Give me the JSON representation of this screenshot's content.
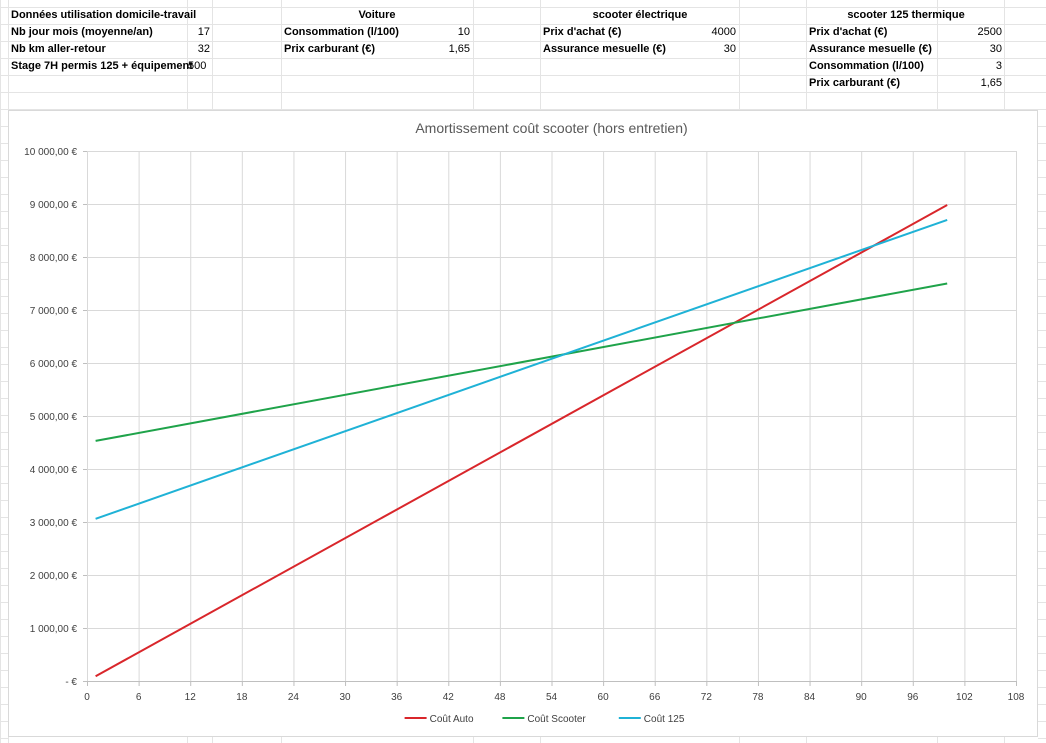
{
  "sheet": {
    "sections": [
      {
        "header": "Données utilisation domicile-travail",
        "rows": [
          {
            "label": "Nb jour mois (moyenne/an)",
            "value": "17"
          },
          {
            "label": "Nb km aller-retour",
            "value": "32"
          },
          {
            "label": "Stage 7H permis 125 + équipement",
            "value": "500"
          }
        ]
      },
      {
        "header": "Voiture",
        "rows": [
          {
            "label": "Consommation (l/100)",
            "value": "10"
          },
          {
            "label": "Prix carburant (€)",
            "value": "1,65"
          }
        ]
      },
      {
        "header": "scooter électrique",
        "rows": [
          {
            "label": "Prix d'achat (€)",
            "value": "4000"
          },
          {
            "label": "Assurance mesuelle (€)",
            "value": "30"
          }
        ]
      },
      {
        "header": "scooter 125 thermique",
        "rows": [
          {
            "label": "Prix d'achat (€)",
            "value": "2500"
          },
          {
            "label": "Assurance mesuelle (€)",
            "value": "30"
          },
          {
            "label": "Consommation (l/100)",
            "value": "3"
          },
          {
            "label": "Prix carburant (€)",
            "value": "1,65"
          }
        ]
      }
    ]
  },
  "colors": {
    "auto": "#d9262b",
    "scooter": "#1fa34a",
    "c125": "#1fb2d6",
    "gridline": "#d9d9d9",
    "axis_text": "#595959"
  },
  "chart_data": {
    "type": "line",
    "title": "Amortissement coût scooter (hors entretien)",
    "xlabel": "",
    "ylabel": "",
    "xlim": [
      0,
      108
    ],
    "ylim": [
      0,
      10000
    ],
    "x_ticks": [
      "0",
      "6",
      "12",
      "18",
      "24",
      "30",
      "36",
      "42",
      "48",
      "54",
      "60",
      "66",
      "72",
      "78",
      "84",
      "90",
      "96",
      "102",
      "108"
    ],
    "y_ticks": [
      "-   €",
      "1 000,00 €",
      "2 000,00 €",
      "3 000,00 €",
      "4 000,00 €",
      "5 000,00 €",
      "6 000,00 €",
      "7 000,00 €",
      "8 000,00 €",
      "9 000,00 €",
      "10 000,00 €"
    ],
    "grid": true,
    "legend_position": "bottom",
    "series": [
      {
        "name": "Coût Auto",
        "color_key": "auto",
        "x": [
          1,
          100
        ],
        "y": [
          90,
          8980
        ]
      },
      {
        "name": "Coût Scooter",
        "color_key": "scooter",
        "x": [
          1,
          100
        ],
        "y": [
          4530,
          7500
        ]
      },
      {
        "name": "Coût 125",
        "color_key": "c125",
        "x": [
          1,
          100
        ],
        "y": [
          3060,
          8700
        ]
      }
    ]
  }
}
